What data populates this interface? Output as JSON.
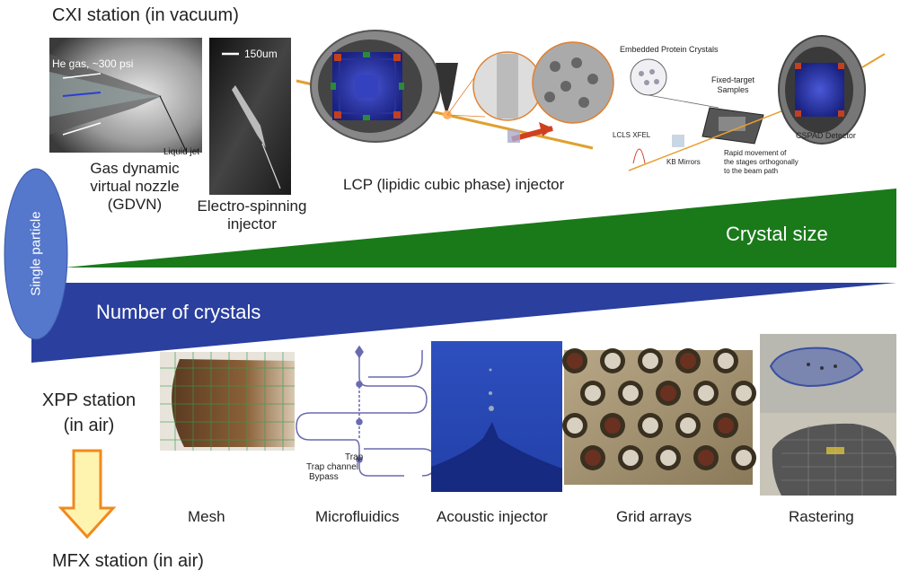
{
  "title": "CXI station (in vacuum)",
  "side_label": "Single particle",
  "cxi_panels": {
    "gdvn": {
      "gas_label": "He gas, ~300 psi",
      "jet_label": "Liquid jet",
      "caption_lines": [
        "Gas dynamic",
        "virtual nozzle",
        "(GDVN)"
      ]
    },
    "electrospin": {
      "scale_label": "150um",
      "caption_lines": [
        "Electro-spinning",
        "injector"
      ]
    },
    "lcp": {
      "caption": "LCP (lipidic cubic phase) injector"
    },
    "fixed_target": {
      "embedded_label": "Embedded Protein Crystals",
      "samples_lines": [
        "Fixed-target",
        "Samples"
      ],
      "detector_label": "CSPAD Detector",
      "xfel_label": "LCLS XFEL",
      "mirrors_label": "KB Mirrors",
      "movement_lines": [
        "Rapid movement of",
        "the stages orthogonally",
        "to the beam path"
      ]
    }
  },
  "wedges": {
    "crystal_size": {
      "label": "Crystal size",
      "color": "#1a7a1a"
    },
    "number_crystals": {
      "label": "Number of crystals",
      "color": "#2a3f9e"
    }
  },
  "xpp_lines": [
    "XPP station",
    "(in air)"
  ],
  "mfx_label": "MFX station (in air)",
  "arrow_colors": {
    "fill": "#fff3b0",
    "stroke": "#f08a1c"
  },
  "ellipse_color": "#5577cc",
  "bottom_panels": {
    "mesh": "Mesh",
    "microfluidics": {
      "caption": "Microfluidics",
      "labels": [
        "Trap",
        "Trap channel",
        "Bypass"
      ]
    },
    "acoustic": "Acoustic injector",
    "grid": "Grid arrays",
    "rastering": "Rastering"
  }
}
